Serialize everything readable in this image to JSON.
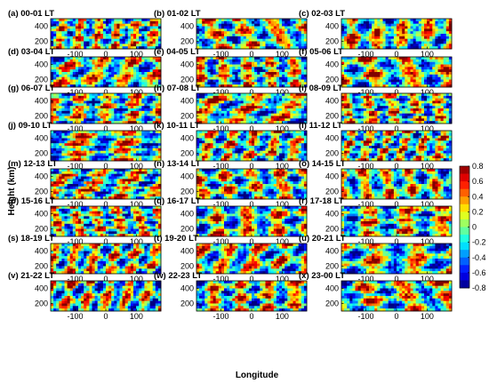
{
  "figure": {
    "ylabel": "Height (km)",
    "xlabel": "Longitude"
  },
  "chart_data": {
    "type": "heatmap",
    "description_panels": "24 panels arranged 8 rows x 3 columns",
    "panels": [
      {
        "label": "(a) 00-01 LT"
      },
      {
        "label": "(b) 01-02 LT"
      },
      {
        "label": "(c) 02-03 LT"
      },
      {
        "label": "(d) 03-04 LT"
      },
      {
        "label": "(e) 04-05 LT"
      },
      {
        "label": "(f) 05-06 LT"
      },
      {
        "label": "(g) 06-07 LT"
      },
      {
        "label": "(h) 07-08 LT"
      },
      {
        "label": "(i) 08-09 LT"
      },
      {
        "label": "(j) 09-10 LT"
      },
      {
        "label": "(k) 10-11 LT"
      },
      {
        "label": "(l) 11-12 LT"
      },
      {
        "label": "(m) 12-13 LT"
      },
      {
        "label": "(n) 13-14 LT"
      },
      {
        "label": "(o) 14-15 LT"
      },
      {
        "label": "(p) 15-16 LT"
      },
      {
        "label": "(q) 16-17 LT"
      },
      {
        "label": "(r) 17-18 LT"
      },
      {
        "label": "(s) 18-19 LT"
      },
      {
        "label": "(t) 19-20 LT"
      },
      {
        "label": "(u) 20-21 LT"
      },
      {
        "label": "(v) 21-22 LT"
      },
      {
        "label": "(w) 22-23 LT"
      },
      {
        "label": "(x) 23-00 LT"
      }
    ],
    "x_ticks": [
      "-100",
      "0",
      "100"
    ],
    "x_tick_values": [
      -100,
      0,
      100
    ],
    "xlim": [
      -180,
      180
    ],
    "y_ticks": [
      "400",
      "200"
    ],
    "y_tick_values": [
      400,
      200
    ],
    "ylim": [
      100,
      500
    ],
    "colorbar": {
      "ticks": [
        "0.8",
        "0.6",
        "0.4",
        "0.2",
        "0",
        "-0.2",
        "-0.4",
        "-0.6",
        "-0.8"
      ],
      "tick_values": [
        0.8,
        0.6,
        0.4,
        0.2,
        0,
        -0.2,
        -0.4,
        -0.6,
        -0.8
      ],
      "range": [
        -0.8,
        0.8
      ],
      "colormap": "jet"
    }
  }
}
